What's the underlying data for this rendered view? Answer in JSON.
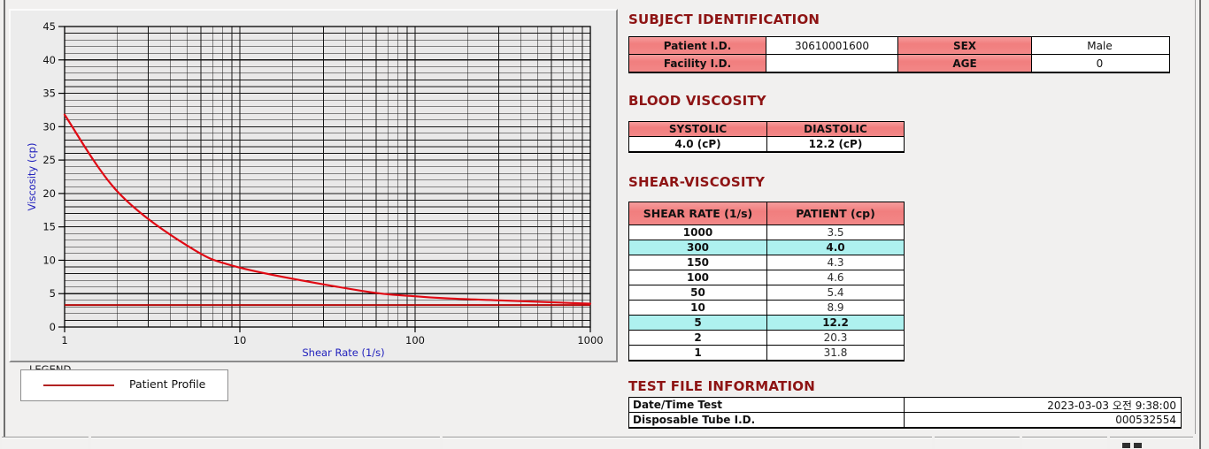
{
  "chart_data": {
    "type": "line",
    "title": "",
    "xlabel": "Shear Rate (1/s)",
    "ylabel": "Viscosity (cp)",
    "x_scale": "log",
    "xlim": [
      1,
      1000
    ],
    "ylim": [
      0,
      45
    ],
    "x_ticks": [
      1,
      10,
      100,
      1000
    ],
    "y_ticks": [
      0,
      5,
      10,
      15,
      20,
      25,
      30,
      35,
      40,
      45
    ],
    "grid": "log-decade minor x, 1-unit minor y, on",
    "legend_position": "below-left",
    "series": [
      {
        "name": "Patient Profile",
        "color": "#e00a14",
        "x": [
          1,
          2,
          5,
          10,
          50,
          100,
          150,
          300,
          1000
        ],
        "values": [
          31.8,
          20.3,
          12.2,
          8.9,
          5.4,
          4.6,
          4.3,
          4.0,
          3.5
        ]
      }
    ],
    "reference_line": {
      "y": 3.3,
      "color": "#b40808"
    }
  },
  "legend": {
    "caption": "LEGEND",
    "items": [
      {
        "label": "Patient Profile",
        "color": "#b22222"
      }
    ]
  },
  "subject_identification": {
    "title": "SUBJECT IDENTIFICATION",
    "patient_id_label": "Patient I.D.",
    "patient_id_value": "30610001600",
    "sex_label": "SEX",
    "sex_value": "Male",
    "facility_id_label": "Facility I.D.",
    "facility_id_value": "",
    "age_label": "AGE",
    "age_value": "0"
  },
  "blood_viscosity": {
    "title": "BLOOD VISCOSITY",
    "systolic_label": "SYSTOLIC",
    "diastolic_label": "DIASTOLIC",
    "systolic_value": "4.0 (cP)",
    "diastolic_value": "12.2 (cP)"
  },
  "shear_viscosity": {
    "title": "SHEAR-VISCOSITY",
    "col_rate": "SHEAR RATE (1/s)",
    "col_patient": "PATIENT (cp)",
    "highlight_color": "#aef1ef",
    "rows": [
      {
        "rate": "1000",
        "value": "3.5",
        "highlight": false
      },
      {
        "rate": "300",
        "value": "4.0",
        "highlight": true
      },
      {
        "rate": "150",
        "value": "4.3",
        "highlight": false
      },
      {
        "rate": "100",
        "value": "4.6",
        "highlight": false
      },
      {
        "rate": "50",
        "value": "5.4",
        "highlight": false
      },
      {
        "rate": "10",
        "value": "8.9",
        "highlight": false
      },
      {
        "rate": "5",
        "value": "12.2",
        "highlight": true
      },
      {
        "rate": "2",
        "value": "20.3",
        "highlight": false
      },
      {
        "rate": "1",
        "value": "31.8",
        "highlight": false
      }
    ]
  },
  "test_file_information": {
    "title": "TEST FILE INFORMATION",
    "date_label": "Date/Time Test",
    "date_value": "2023-03-03   오전 9:38:00",
    "tube_label": "Disposable Tube I.D.",
    "tube_value": "000532554"
  },
  "colors": {
    "section_title": "#8e1414",
    "table_header_pink": "#f28282",
    "row_highlight_cyan": "#aef1ef",
    "axis_label_blue": "#2121bd",
    "curve_red": "#e00a14"
  }
}
